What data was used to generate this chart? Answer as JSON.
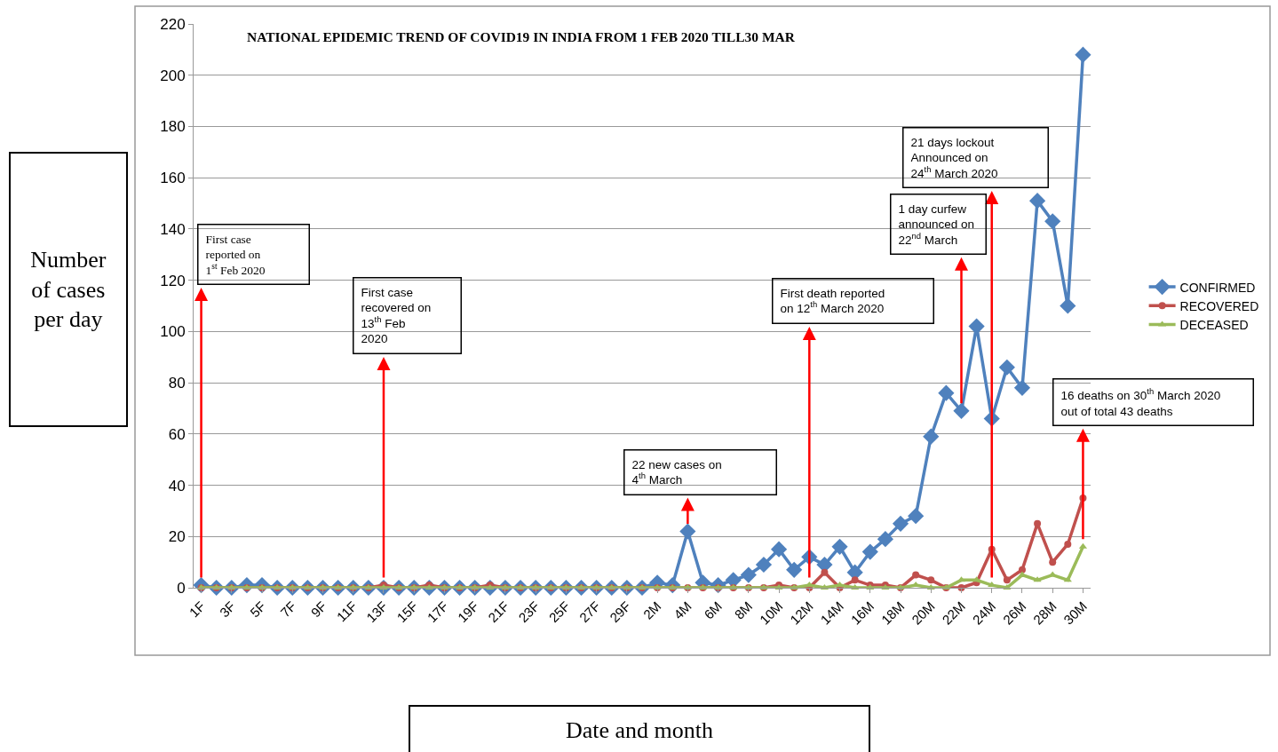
{
  "chart_data": {
    "type": "line",
    "title": "NATIONAL EPIDEMIC TREND OF COVID19 IN INDIA FROM 1 FEB 2020 TILL30 MAR",
    "xlabel": "Date and month",
    "ylabel": "Number of cases per day",
    "categories": [
      "1F",
      null,
      "3F",
      null,
      "5F",
      null,
      "7F",
      null,
      "9F",
      null,
      "11F",
      null,
      "13F",
      null,
      "15F",
      null,
      "17F",
      null,
      "19F",
      null,
      "21F",
      null,
      "23F",
      null,
      "25F",
      null,
      "27F",
      null,
      "29F",
      null,
      "2M",
      null,
      "4M",
      null,
      "6M",
      null,
      "8M",
      null,
      "10M",
      null,
      "12M",
      null,
      "14M",
      null,
      "16M",
      null,
      "18M",
      null,
      "20M",
      null,
      "22M",
      null,
      "24M",
      null,
      "26M",
      null,
      "28M",
      null,
      "30M"
    ],
    "series": [
      {
        "name": "CONFIRMED",
        "color": "#4f81bd",
        "marker": "diamond",
        "values": [
          1,
          0,
          0,
          1,
          1,
          0,
          0,
          0,
          0,
          0,
          0,
          0,
          0,
          0,
          0,
          0,
          0,
          0,
          0,
          0,
          0,
          0,
          0,
          0,
          0,
          0,
          0,
          0,
          0,
          0,
          2,
          1,
          22,
          2,
          1,
          3,
          5,
          9,
          15,
          7,
          12,
          9,
          16,
          6,
          14,
          19,
          25,
          28,
          59,
          76,
          69,
          102,
          66,
          86,
          78,
          151,
          143,
          110,
          208
        ]
      },
      {
        "name": "RECOVERED",
        "color": "#c0504d",
        "marker": "circle",
        "values": [
          0,
          0,
          0,
          0,
          0,
          0,
          0,
          0,
          0,
          0,
          0,
          0,
          1,
          0,
          0,
          1,
          0,
          0,
          0,
          1,
          0,
          0,
          0,
          0,
          0,
          0,
          0,
          0,
          0,
          0,
          0,
          0,
          0,
          0,
          0,
          0,
          0,
          0,
          1,
          0,
          0,
          6,
          0,
          3,
          1,
          1,
          0,
          5,
          3,
          0,
          0,
          2,
          15,
          3,
          7,
          25,
          10,
          17,
          35
        ]
      },
      {
        "name": "DECEASED",
        "color": "#9bbb59",
        "marker": "triangle",
        "values": [
          0,
          0,
          0,
          0,
          0,
          0,
          0,
          0,
          0,
          0,
          0,
          0,
          0,
          0,
          0,
          0,
          0,
          0,
          0,
          0,
          0,
          0,
          0,
          0,
          0,
          0,
          0,
          0,
          0,
          0,
          0,
          0,
          0,
          0,
          0,
          0,
          0,
          0,
          0,
          0,
          1,
          0,
          1,
          0,
          0,
          0,
          0,
          1,
          0,
          0,
          3,
          3,
          1,
          0,
          5,
          3,
          5,
          3,
          16
        ]
      }
    ],
    "ylim": [
      0,
      220
    ],
    "yticks": [
      0,
      20,
      40,
      60,
      80,
      100,
      120,
      140,
      160,
      180,
      200,
      220
    ],
    "grid": "y",
    "legend": "right",
    "annotations": [
      {
        "text": "First case reported on 1$^{st}$ Feb 2020",
        "x": "1F",
        "y": 1
      },
      {
        "text": "First case recovered on 13$^{th}$ Feb 2020",
        "x": "13F",
        "y": 1
      },
      {
        "text": "22 new cases on 4$^{th}$ March",
        "x": "4M",
        "y": 22
      },
      {
        "text": "First death reported on 12$^{th}$ March 2020",
        "x": "12M",
        "y": 1
      },
      {
        "text": "1 day curfew announced on 22$^{nd}$ March",
        "x": "22M",
        "y": 69
      },
      {
        "text": "21 days lockout Announced on 24$^{th}$ March 2020",
        "x": "24M",
        "y": 1
      },
      {
        "text": "16 deaths on 30$^{th}$ March 2020 out of total 43 deaths",
        "x": "30M",
        "y": 16
      }
    ]
  }
}
